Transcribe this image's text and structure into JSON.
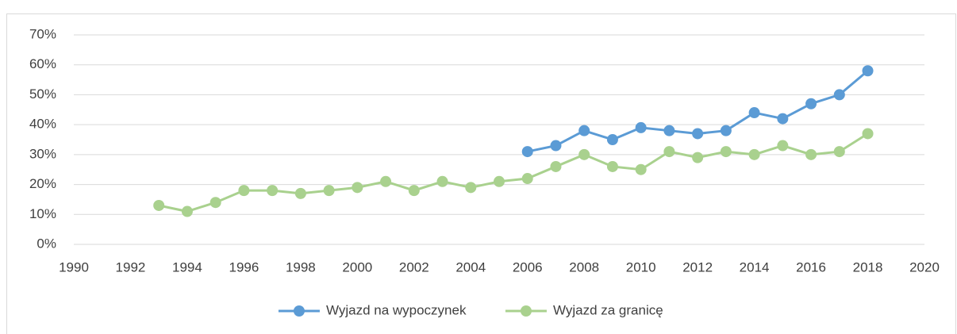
{
  "chart_data": {
    "type": "line",
    "x": [
      1993,
      1994,
      1995,
      1996,
      1997,
      1998,
      1999,
      2000,
      2001,
      2002,
      2003,
      2004,
      2005,
      2006,
      2007,
      2008,
      2009,
      2010,
      2011,
      2012,
      2013,
      2014,
      2015,
      2016,
      2017,
      2018
    ],
    "series": [
      {
        "name": "Wyjazd na wypoczynek",
        "color": "#5b9bd5",
        "values": [
          null,
          null,
          null,
          null,
          null,
          null,
          null,
          null,
          null,
          null,
          null,
          null,
          null,
          31,
          33,
          38,
          35,
          39,
          38,
          37,
          38,
          44,
          42,
          47,
          50,
          58
        ]
      },
      {
        "name": "Wyjazd za granicę",
        "color": "#a9d18e",
        "values": [
          13,
          11,
          14,
          18,
          18,
          17,
          18,
          19,
          21,
          18,
          21,
          19,
          21,
          22,
          26,
          30,
          26,
          25,
          31,
          29,
          31,
          30,
          33,
          30,
          31,
          37
        ]
      }
    ],
    "xlim": [
      1990,
      2020
    ],
    "xticks": [
      1990,
      1992,
      1994,
      1996,
      1998,
      2000,
      2002,
      2004,
      2006,
      2008,
      2010,
      2012,
      2014,
      2016,
      2018,
      2020
    ],
    "ylim": [
      0,
      70
    ],
    "yticks": [
      {
        "value": 0,
        "label": "0%"
      },
      {
        "value": 10,
        "label": "10%"
      },
      {
        "value": 20,
        "label": "20%"
      },
      {
        "value": 30,
        "label": "30%"
      },
      {
        "value": 40,
        "label": "40%"
      },
      {
        "value": 50,
        "label": "50%"
      },
      {
        "value": 60,
        "label": "60%"
      },
      {
        "value": 70,
        "label": "70%"
      }
    ],
    "grid": true,
    "legend": "bottom"
  }
}
